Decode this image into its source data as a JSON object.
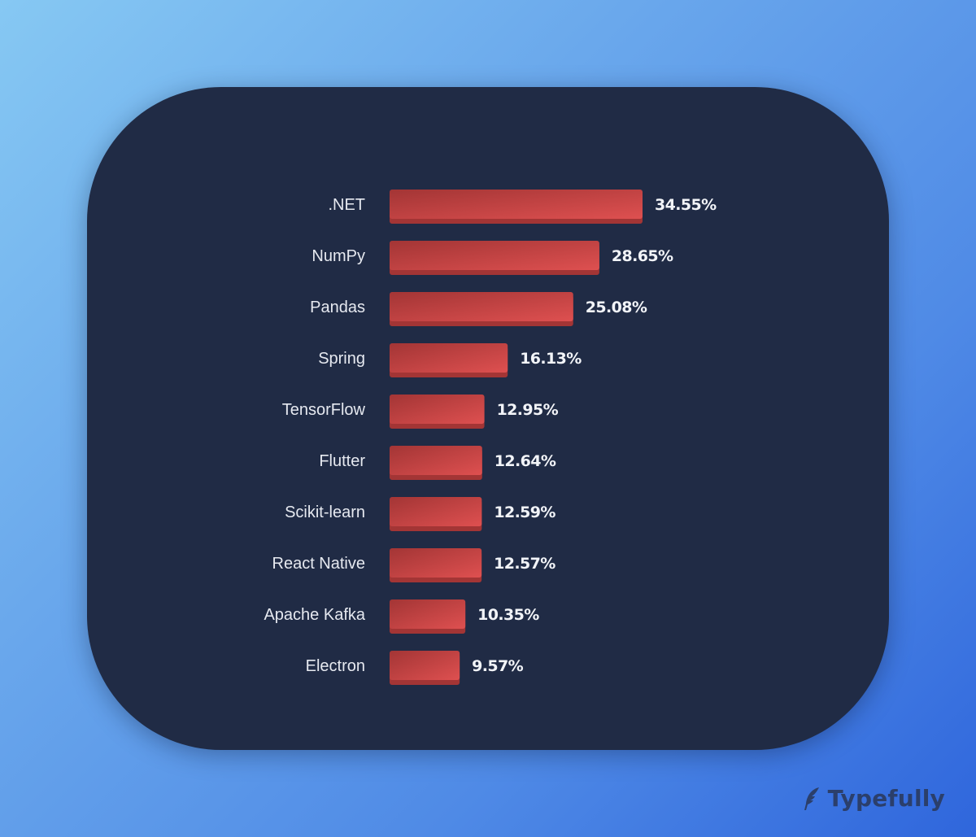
{
  "chart_data": {
    "type": "bar",
    "orientation": "horizontal",
    "categories": [
      ".NET",
      "NumPy",
      "Pandas",
      "Spring",
      "TensorFlow",
      "Flutter",
      "Scikit-learn",
      "React Native",
      "Apache Kafka",
      "Electron"
    ],
    "values": [
      34.55,
      28.65,
      25.08,
      16.13,
      12.95,
      12.64,
      12.59,
      12.57,
      10.35,
      9.57
    ],
    "value_labels": [
      "34.55%",
      "28.65%",
      "25.08%",
      "16.13%",
      "12.95%",
      "12.64%",
      "12.59%",
      "12.57%",
      "10.35%",
      "9.57%"
    ],
    "title": "",
    "xlabel": "",
    "ylabel": "",
    "xlim": [
      0,
      34.55
    ],
    "grid": false,
    "legend": "none",
    "colors": {
      "bar": "#d14a4a",
      "bar_dark": "#a33535",
      "card": "#202b45",
      "text": "#e6e9f0"
    }
  },
  "brand": {
    "name": "Typefully",
    "icon": "feather-icon"
  }
}
